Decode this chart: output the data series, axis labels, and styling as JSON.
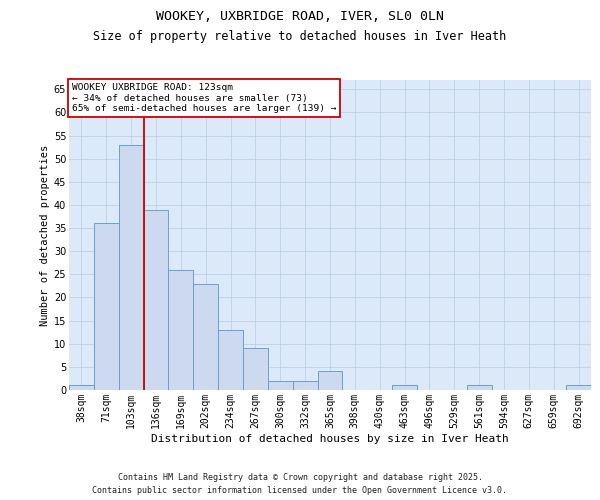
{
  "title1": "WOOKEY, UXBRIDGE ROAD, IVER, SL0 0LN",
  "title2": "Size of property relative to detached houses in Iver Heath",
  "xlabel": "Distribution of detached houses by size in Iver Heath",
  "ylabel": "Number of detached properties",
  "categories": [
    "38sqm",
    "71sqm",
    "103sqm",
    "136sqm",
    "169sqm",
    "202sqm",
    "234sqm",
    "267sqm",
    "300sqm",
    "332sqm",
    "365sqm",
    "398sqm",
    "430sqm",
    "463sqm",
    "496sqm",
    "529sqm",
    "561sqm",
    "594sqm",
    "627sqm",
    "659sqm",
    "692sqm"
  ],
  "values": [
    1,
    36,
    53,
    39,
    26,
    23,
    13,
    9,
    2,
    2,
    4,
    0,
    0,
    1,
    0,
    0,
    1,
    0,
    0,
    0,
    1
  ],
  "bar_color": "#cdd9ee",
  "bar_edge_color": "#6a9fd0",
  "vline_color": "#cc0000",
  "vline_x_idx": 2,
  "annotation_line1": "WOOKEY UXBRIDGE ROAD: 123sqm",
  "annotation_line2": "← 34% of detached houses are smaller (73)",
  "annotation_line3": "65% of semi-detached houses are larger (139) →",
  "ylim_max": 67,
  "yticks": [
    0,
    5,
    10,
    15,
    20,
    25,
    30,
    35,
    40,
    45,
    50,
    55,
    60,
    65
  ],
  "grid_color": "#b8cce4",
  "bg_color": "#dce9f8",
  "footer": "Contains HM Land Registry data © Crown copyright and database right 2025.\nContains public sector information licensed under the Open Government Licence v3.0.",
  "title1_fontsize": 9.5,
  "title2_fontsize": 8.5,
  "xlabel_fontsize": 8,
  "ylabel_fontsize": 7.5,
  "tick_fontsize": 7,
  "annotation_fontsize": 6.8,
  "footer_fontsize": 6
}
